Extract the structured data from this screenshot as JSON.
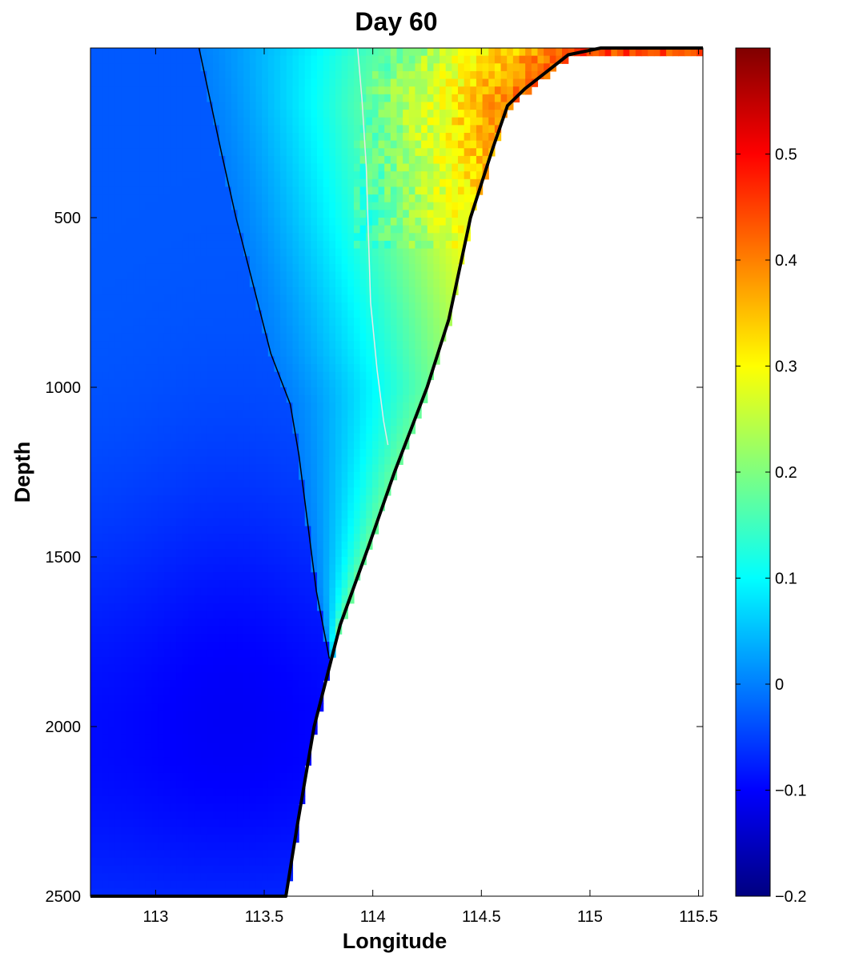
{
  "chart_data": {
    "type": "heatmap",
    "title": "Day 60",
    "xlabel": "Longitude",
    "ylabel": "Depth",
    "xlim": [
      112.7,
      115.52
    ],
    "ylim": [
      0,
      2500
    ],
    "y_reversed": true,
    "x_ticks": [
      113,
      113.5,
      114,
      114.5,
      115,
      115.5
    ],
    "x_tick_labels": [
      "113",
      "113.5",
      "114",
      "114.5",
      "115",
      "115.5"
    ],
    "y_ticks": [
      500,
      1000,
      1500,
      2000,
      2500
    ],
    "y_tick_labels": [
      "500",
      "1000",
      "1500",
      "2000",
      "2500"
    ],
    "colorbar": {
      "colormap": "jet",
      "range": [
        -0.2,
        0.6
      ],
      "ticks": [
        -0.2,
        -0.1,
        0,
        0.1,
        0.2,
        0.3,
        0.4,
        0.5
      ],
      "tick_labels": [
        "−0.2",
        "−0.1",
        "0",
        "0.1",
        "0.2",
        "0.3",
        "0.4",
        "0.5"
      ]
    },
    "bathymetry": {
      "color": "#000000",
      "points": [
        [
          112.7,
          2500
        ],
        [
          113.6,
          2500
        ],
        [
          113.65,
          2300
        ],
        [
          113.73,
          2000
        ],
        [
          113.85,
          1700
        ],
        [
          113.98,
          1470
        ],
        [
          114.1,
          1250
        ],
        [
          114.25,
          1000
        ],
        [
          114.35,
          800
        ],
        [
          114.45,
          500
        ],
        [
          114.55,
          300
        ],
        [
          114.62,
          170
        ],
        [
          114.7,
          120
        ],
        [
          114.9,
          20
        ],
        [
          115.05,
          0
        ],
        [
          115.52,
          0
        ]
      ]
    },
    "contours": [
      {
        "level": 0,
        "color": "#000000",
        "points": [
          [
            113.2,
            0
          ],
          [
            113.25,
            150
          ],
          [
            113.3,
            300
          ],
          [
            113.37,
            500
          ],
          [
            113.45,
            700
          ],
          [
            113.53,
            900
          ],
          [
            113.62,
            1050
          ],
          [
            113.66,
            1200
          ],
          [
            113.7,
            1400
          ],
          [
            113.74,
            1600
          ],
          [
            113.8,
            1800
          ]
        ]
      },
      {
        "level": 0.2,
        "color": "#e8e8e8",
        "points": [
          [
            113.93,
            0
          ],
          [
            113.95,
            150
          ],
          [
            113.97,
            350
          ],
          [
            113.98,
            550
          ],
          [
            113.99,
            750
          ],
          [
            114.02,
            950
          ],
          [
            114.05,
            1100
          ],
          [
            114.07,
            1170
          ]
        ]
      }
    ]
  }
}
